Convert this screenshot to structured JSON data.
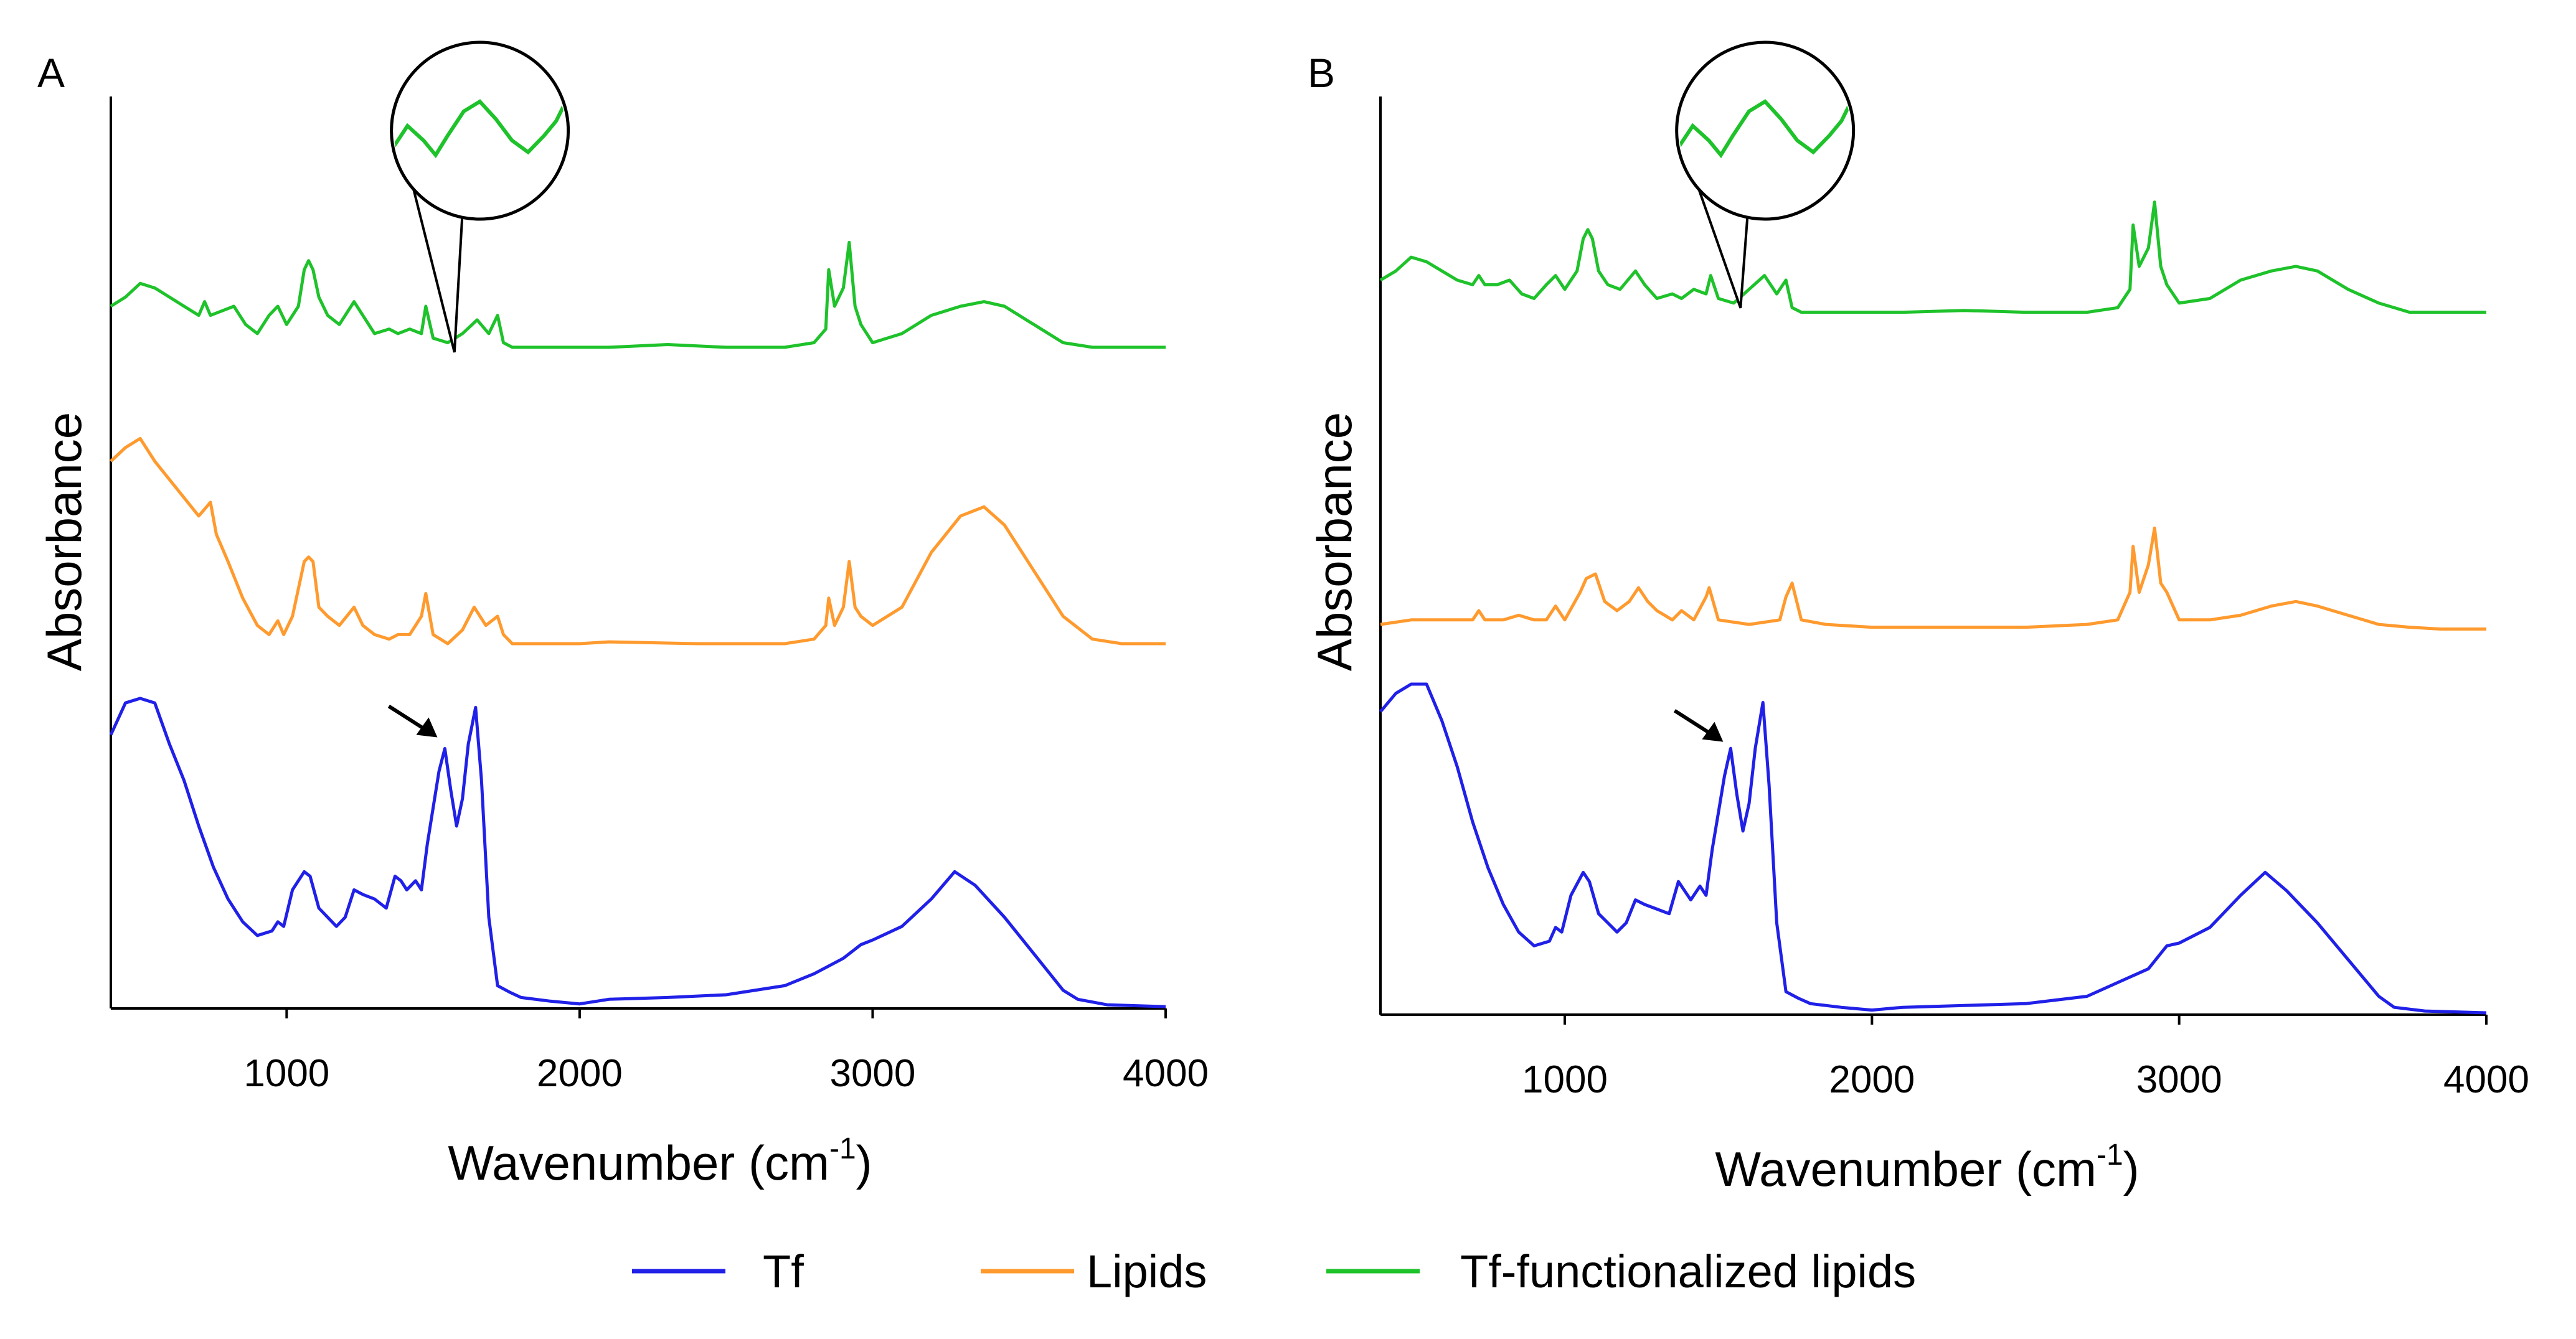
{
  "figure": {
    "legend": [
      {
        "label": "Tf",
        "color": "#2020e8"
      },
      {
        "label": "Lipids",
        "color": "#ff9a2e"
      },
      {
        "label": "Tf-functionalized lipids",
        "color": "#1ec22a"
      }
    ]
  },
  "chart_data": [
    {
      "type": "line",
      "panel": "A",
      "xlabel": "Wavenumber (cm",
      "xlabel_sup": "-1",
      "xlabel_close": ")",
      "ylabel": "Absorbance",
      "xlim": [
        400,
        4000
      ],
      "ylim": [
        0,
        1
      ],
      "xticks": [
        1000,
        2000,
        3000,
        4000
      ],
      "xtick_labels": [
        "1000",
        "2000",
        "3000",
        "4000"
      ],
      "y_ticks_shown": false,
      "grid": false,
      "annotations": [
        {
          "type": "arrow",
          "series": "Tf",
          "x": 1540,
          "y": 0.285
        },
        {
          "type": "magnifier-inset",
          "series": "Tf-functionalized lipids",
          "x_range": [
            1500,
            1620
          ],
          "y": 0.74
        }
      ],
      "series": [
        {
          "name": "Tf",
          "color": "#2020e8",
          "x": [
            400,
            450,
            500,
            550,
            600,
            650,
            700,
            750,
            800,
            850,
            900,
            950,
            970,
            990,
            1020,
            1060,
            1080,
            1110,
            1140,
            1170,
            1200,
            1230,
            1260,
            1300,
            1340,
            1370,
            1390,
            1410,
            1440,
            1460,
            1480,
            1500,
            1520,
            1540,
            1560,
            1580,
            1600,
            1620,
            1645,
            1665,
            1690,
            1720,
            1760,
            1800,
            1900,
            2000,
            2100,
            2300,
            2500,
            2700,
            2800,
            2900,
            2960,
            3000,
            3100,
            3200,
            3280,
            3350,
            3450,
            3550,
            3650,
            3700,
            3800,
            4000
          ],
          "y": [
            0.3,
            0.335,
            0.34,
            0.335,
            0.29,
            0.25,
            0.2,
            0.155,
            0.12,
            0.095,
            0.08,
            0.085,
            0.095,
            0.09,
            0.13,
            0.15,
            0.145,
            0.11,
            0.1,
            0.09,
            0.1,
            0.13,
            0.125,
            0.12,
            0.11,
            0.145,
            0.14,
            0.13,
            0.14,
            0.13,
            0.18,
            0.22,
            0.26,
            0.285,
            0.24,
            0.2,
            0.23,
            0.29,
            0.33,
            0.25,
            0.1,
            0.025,
            0.018,
            0.012,
            0.008,
            0.005,
            0.01,
            0.012,
            0.015,
            0.025,
            0.038,
            0.055,
            0.07,
            0.075,
            0.09,
            0.12,
            0.15,
            0.135,
            0.1,
            0.06,
            0.02,
            0.01,
            0.004,
            0.002
          ]
        },
        {
          "name": "Lipids",
          "color": "#ff9a2e",
          "x": [
            400,
            450,
            500,
            550,
            600,
            650,
            700,
            740,
            760,
            800,
            850,
            900,
            940,
            970,
            990,
            1020,
            1060,
            1075,
            1090,
            1110,
            1140,
            1180,
            1230,
            1260,
            1300,
            1350,
            1380,
            1420,
            1460,
            1475,
            1500,
            1550,
            1600,
            1640,
            1680,
            1720,
            1740,
            1770,
            1850,
            2000,
            2100,
            2400,
            2700,
            2800,
            2840,
            2850,
            2870,
            2900,
            2920,
            2940,
            2960,
            3000,
            3100,
            3200,
            3300,
            3380,
            3450,
            3550,
            3650,
            3750,
            3850,
            4000
          ],
          "y": [
            0.6,
            0.615,
            0.625,
            0.6,
            0.58,
            0.56,
            0.54,
            0.555,
            0.52,
            0.49,
            0.45,
            0.42,
            0.41,
            0.425,
            0.41,
            0.43,
            0.49,
            0.495,
            0.49,
            0.44,
            0.43,
            0.42,
            0.44,
            0.42,
            0.41,
            0.405,
            0.41,
            0.41,
            0.43,
            0.455,
            0.41,
            0.4,
            0.415,
            0.44,
            0.42,
            0.43,
            0.41,
            0.4,
            0.4,
            0.4,
            0.402,
            0.4,
            0.4,
            0.405,
            0.42,
            0.45,
            0.42,
            0.44,
            0.49,
            0.44,
            0.43,
            0.42,
            0.44,
            0.5,
            0.54,
            0.55,
            0.53,
            0.48,
            0.43,
            0.405,
            0.4,
            0.4
          ]
        },
        {
          "name": "Tf-functionalized lipids",
          "color": "#1ec22a",
          "x": [
            400,
            450,
            500,
            550,
            600,
            650,
            700,
            720,
            740,
            780,
            820,
            860,
            900,
            940,
            970,
            1000,
            1040,
            1060,
            1075,
            1090,
            1110,
            1140,
            1180,
            1230,
            1260,
            1300,
            1350,
            1380,
            1420,
            1460,
            1475,
            1500,
            1550,
            1600,
            1650,
            1690,
            1720,
            1740,
            1770,
            1850,
            2000,
            2100,
            2300,
            2500,
            2700,
            2800,
            2840,
            2850,
            2870,
            2900,
            2920,
            2940,
            2960,
            3000,
            3100,
            3200,
            3300,
            3380,
            3450,
            3550,
            3650,
            3750,
            3850,
            4000
          ],
          "y": [
            0.77,
            0.78,
            0.795,
            0.79,
            0.78,
            0.77,
            0.76,
            0.775,
            0.76,
            0.765,
            0.77,
            0.75,
            0.74,
            0.76,
            0.77,
            0.75,
            0.77,
            0.81,
            0.82,
            0.81,
            0.78,
            0.76,
            0.75,
            0.775,
            0.76,
            0.74,
            0.745,
            0.74,
            0.745,
            0.74,
            0.77,
            0.735,
            0.73,
            0.74,
            0.755,
            0.74,
            0.76,
            0.73,
            0.725,
            0.725,
            0.725,
            0.725,
            0.728,
            0.725,
            0.725,
            0.73,
            0.745,
            0.81,
            0.77,
            0.79,
            0.84,
            0.77,
            0.75,
            0.73,
            0.74,
            0.76,
            0.77,
            0.775,
            0.77,
            0.75,
            0.73,
            0.725,
            0.725,
            0.725
          ]
        }
      ]
    },
    {
      "type": "line",
      "panel": "B",
      "xlabel": "Wavenumber (cm",
      "xlabel_sup": "-1",
      "xlabel_close": ")",
      "ylabel": "Absorbance",
      "xlim": [
        400,
        4000
      ],
      "ylim": [
        0,
        1
      ],
      "xticks": [
        1000,
        2000,
        3000,
        4000
      ],
      "xtick_labels": [
        "1000",
        "2000",
        "3000",
        "4000"
      ],
      "y_ticks_shown": false,
      "grid": false,
      "annotations": [
        {
          "type": "arrow",
          "series": "Tf",
          "x": 1540,
          "y": 0.285
        },
        {
          "type": "magnifier-inset",
          "series": "Tf-functionalized lipids",
          "x_range": [
            1500,
            1620
          ],
          "y": 0.79
        }
      ],
      "series": [
        {
          "name": "Tf",
          "color": "#2020e8",
          "x": [
            400,
            450,
            500,
            550,
            600,
            650,
            700,
            750,
            800,
            850,
            900,
            950,
            970,
            990,
            1020,
            1060,
            1080,
            1110,
            1140,
            1170,
            1200,
            1230,
            1260,
            1300,
            1340,
            1370,
            1390,
            1410,
            1440,
            1460,
            1480,
            1500,
            1520,
            1540,
            1560,
            1580,
            1600,
            1620,
            1645,
            1665,
            1690,
            1720,
            1760,
            1800,
            1900,
            2000,
            2100,
            2300,
            2500,
            2700,
            2800,
            2900,
            2960,
            3000,
            3100,
            3200,
            3280,
            3350,
            3450,
            3550,
            3650,
            3700,
            3800,
            4000
          ],
          "y": [
            0.33,
            0.35,
            0.36,
            0.36,
            0.32,
            0.27,
            0.21,
            0.16,
            0.12,
            0.09,
            0.075,
            0.08,
            0.095,
            0.09,
            0.13,
            0.155,
            0.145,
            0.11,
            0.1,
            0.09,
            0.1,
            0.125,
            0.12,
            0.115,
            0.11,
            0.145,
            0.135,
            0.125,
            0.14,
            0.13,
            0.18,
            0.22,
            0.26,
            0.29,
            0.24,
            0.2,
            0.23,
            0.29,
            0.34,
            0.25,
            0.1,
            0.025,
            0.018,
            0.012,
            0.008,
            0.005,
            0.008,
            0.01,
            0.012,
            0.02,
            0.035,
            0.05,
            0.075,
            0.078,
            0.095,
            0.13,
            0.155,
            0.135,
            0.1,
            0.06,
            0.02,
            0.008,
            0.004,
            0.002
          ]
        },
        {
          "name": "Lipids",
          "color": "#ff9a2e",
          "x": [
            400,
            500,
            600,
            700,
            720,
            740,
            800,
            850,
            900,
            940,
            970,
            1000,
            1050,
            1070,
            1100,
            1130,
            1170,
            1210,
            1240,
            1270,
            1300,
            1350,
            1380,
            1420,
            1460,
            1470,
            1500,
            1600,
            1700,
            1720,
            1740,
            1770,
            1850,
            2000,
            2200,
            2500,
            2700,
            2800,
            2840,
            2850,
            2870,
            2900,
            2920,
            2940,
            2960,
            3000,
            3100,
            3200,
            3300,
            3380,
            3450,
            3550,
            3650,
            3750,
            3850,
            4000
          ],
          "y": [
            0.425,
            0.43,
            0.43,
            0.43,
            0.44,
            0.43,
            0.43,
            0.435,
            0.43,
            0.43,
            0.445,
            0.43,
            0.46,
            0.475,
            0.48,
            0.45,
            0.44,
            0.45,
            0.465,
            0.45,
            0.44,
            0.43,
            0.44,
            0.43,
            0.455,
            0.465,
            0.43,
            0.425,
            0.43,
            0.455,
            0.47,
            0.43,
            0.425,
            0.422,
            0.422,
            0.422,
            0.425,
            0.43,
            0.46,
            0.51,
            0.46,
            0.49,
            0.53,
            0.47,
            0.46,
            0.43,
            0.43,
            0.435,
            0.445,
            0.45,
            0.445,
            0.435,
            0.425,
            0.422,
            0.42,
            0.42
          ]
        },
        {
          "name": "Tf-functionalized lipids",
          "color": "#1ec22a",
          "x": [
            400,
            450,
            500,
            550,
            600,
            650,
            700,
            720,
            740,
            780,
            820,
            860,
            900,
            940,
            970,
            1000,
            1040,
            1060,
            1075,
            1090,
            1110,
            1140,
            1180,
            1230,
            1260,
            1300,
            1350,
            1380,
            1420,
            1460,
            1475,
            1500,
            1550,
            1600,
            1650,
            1690,
            1720,
            1740,
            1770,
            1850,
            2000,
            2100,
            2300,
            2500,
            2700,
            2800,
            2840,
            2850,
            2870,
            2900,
            2920,
            2940,
            2960,
            3000,
            3100,
            3200,
            3300,
            3380,
            3450,
            3550,
            3650,
            3750,
            3850,
            4000
          ],
          "y": [
            0.8,
            0.81,
            0.825,
            0.82,
            0.81,
            0.8,
            0.795,
            0.805,
            0.795,
            0.795,
            0.8,
            0.785,
            0.78,
            0.795,
            0.805,
            0.79,
            0.81,
            0.845,
            0.855,
            0.845,
            0.81,
            0.795,
            0.79,
            0.81,
            0.795,
            0.78,
            0.785,
            0.78,
            0.79,
            0.785,
            0.805,
            0.78,
            0.775,
            0.79,
            0.805,
            0.785,
            0.8,
            0.77,
            0.765,
            0.765,
            0.765,
            0.765,
            0.767,
            0.765,
            0.765,
            0.77,
            0.79,
            0.86,
            0.815,
            0.835,
            0.885,
            0.815,
            0.795,
            0.775,
            0.78,
            0.8,
            0.81,
            0.815,
            0.81,
            0.79,
            0.775,
            0.765,
            0.765,
            0.765
          ]
        }
      ]
    }
  ]
}
